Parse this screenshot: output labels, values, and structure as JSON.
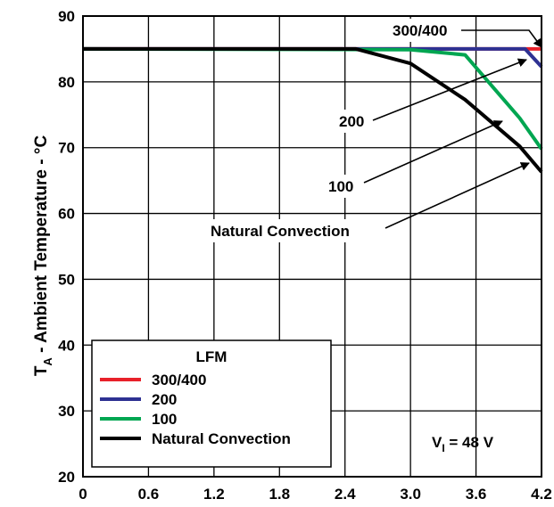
{
  "chart_data": {
    "type": "line",
    "ylabel_main": "T",
    "ylabel_sub": "A",
    "ylabel_rest": " - Ambient Temperature - °C",
    "xlim": [
      0,
      4.2
    ],
    "ylim": [
      20,
      90
    ],
    "x_ticks": [
      "0",
      "0.6",
      "1.2",
      "1.8",
      "2.4",
      "3.0",
      "3.6",
      "4.2"
    ],
    "x_tick_values": [
      0,
      0.6,
      1.2,
      1.8,
      2.4,
      3.0,
      3.6,
      4.2
    ],
    "y_ticks": [
      "20",
      "30",
      "40",
      "50",
      "60",
      "70",
      "80",
      "90"
    ],
    "y_tick_values": [
      20,
      30,
      40,
      50,
      60,
      70,
      80,
      90
    ],
    "grid": true,
    "series": [
      {
        "name": "300/400",
        "color": "#e8212a",
        "points": [
          [
            0,
            85
          ],
          [
            4.2,
            85
          ]
        ]
      },
      {
        "name": "200",
        "color": "#2e3192",
        "points": [
          [
            0,
            85
          ],
          [
            4.05,
            85
          ],
          [
            4.2,
            82.3
          ]
        ]
      },
      {
        "name": "100",
        "color": "#00a651",
        "points": [
          [
            0,
            85
          ],
          [
            3.0,
            84.9
          ],
          [
            3.5,
            84.1
          ],
          [
            4.0,
            74.5
          ],
          [
            4.2,
            69.8
          ]
        ]
      },
      {
        "name": "Natural Convection",
        "color": "#000000",
        "points": [
          [
            0,
            85
          ],
          [
            2.5,
            85
          ],
          [
            3.0,
            82.8
          ],
          [
            3.5,
            77.3
          ],
          [
            4.0,
            70.2
          ],
          [
            4.2,
            66.3
          ]
        ]
      }
    ],
    "legend": {
      "title": "LFM",
      "position": "bottom-left"
    },
    "annotations": {
      "a300": "300/400",
      "a200": "200",
      "a100": "100",
      "anat": "Natural Convection",
      "vi_main": "V",
      "vi_sub": "I",
      "vi_rest": " = 48 V"
    }
  }
}
